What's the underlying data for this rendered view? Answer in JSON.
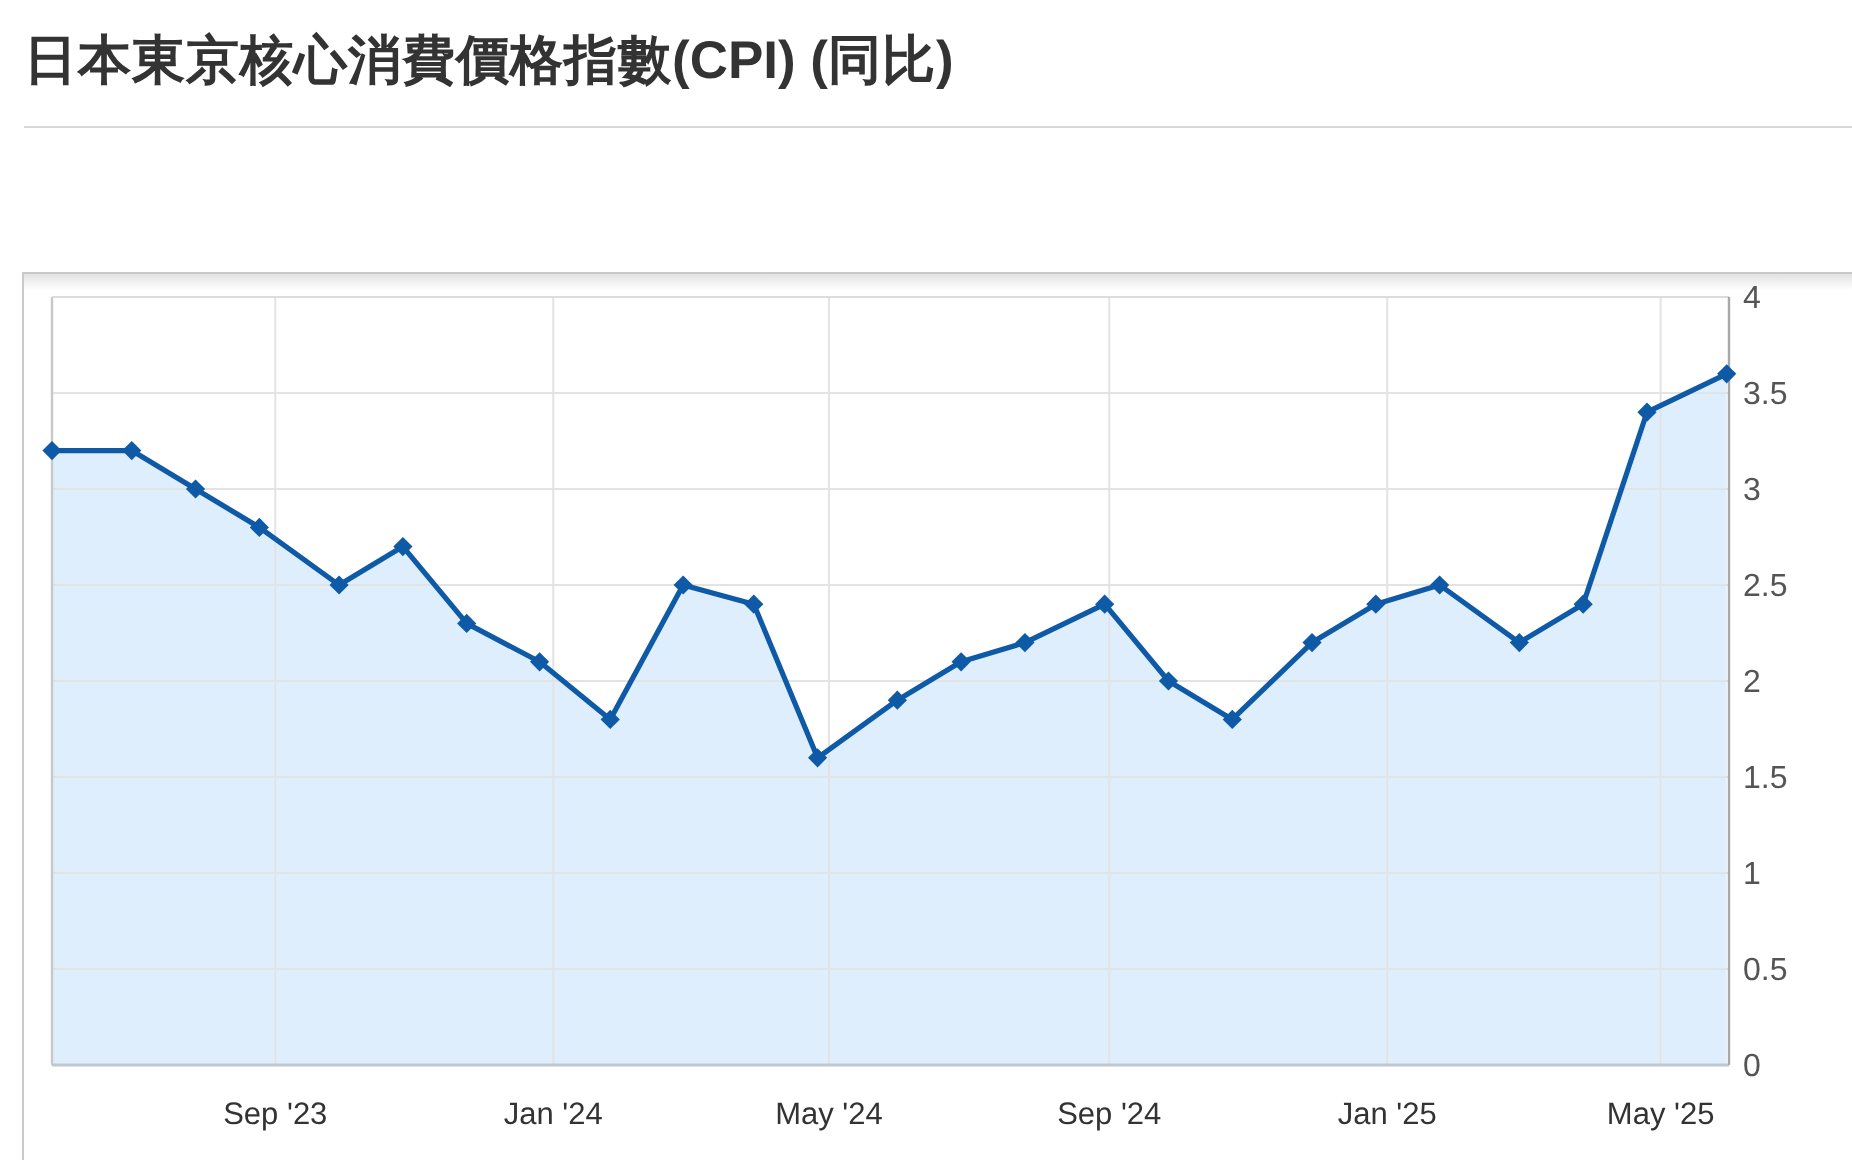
{
  "chart_data": {
    "type": "area",
    "title": "日本東京核心消費價格指數(CPI) (同比)",
    "x": [
      "2023-05-26",
      "2023-06-30",
      "2023-07-28",
      "2023-08-25",
      "2023-09-29",
      "2023-10-27",
      "2023-11-24",
      "2023-12-26",
      "2024-01-26",
      "2024-02-27",
      "2024-03-29",
      "2024-04-26",
      "2024-05-31",
      "2024-06-28",
      "2024-07-26",
      "2024-08-30",
      "2024-09-27",
      "2024-10-25",
      "2024-11-29",
      "2024-12-27",
      "2025-01-24",
      "2025-02-28",
      "2025-03-28",
      "2025-04-25",
      "2025-05-30"
    ],
    "series": [
      {
        "color": "#0e5aa7",
        "values": [
          3.2,
          3.2,
          3.0,
          2.8,
          2.5,
          2.7,
          2.3,
          2.1,
          1.8,
          2.5,
          2.4,
          1.6,
          1.9,
          2.1,
          2.2,
          2.4,
          2.0,
          1.8,
          2.2,
          2.4,
          2.5,
          2.2,
          2.4,
          3.4,
          3.6
        ]
      }
    ],
    "xlim": [
      "2023-05-26",
      "2025-05-31"
    ],
    "xticks": [
      {
        "value": "2023-09-01",
        "label": "Sep '23"
      },
      {
        "value": "2024-01-01",
        "label": "Jan '24"
      },
      {
        "value": "2024-05-01",
        "label": "May '24"
      },
      {
        "value": "2024-09-01",
        "label": "Sep '24"
      },
      {
        "value": "2025-01-01",
        "label": "Jan '25"
      },
      {
        "value": "2025-05-01",
        "label": "May '25"
      }
    ],
    "ylim": [
      0,
      4
    ],
    "yticks": [
      0,
      0.5,
      1,
      1.5,
      2,
      2.5,
      3,
      3.5,
      4
    ],
    "grid": true,
    "marker": "diamond",
    "line_style": "solid"
  }
}
